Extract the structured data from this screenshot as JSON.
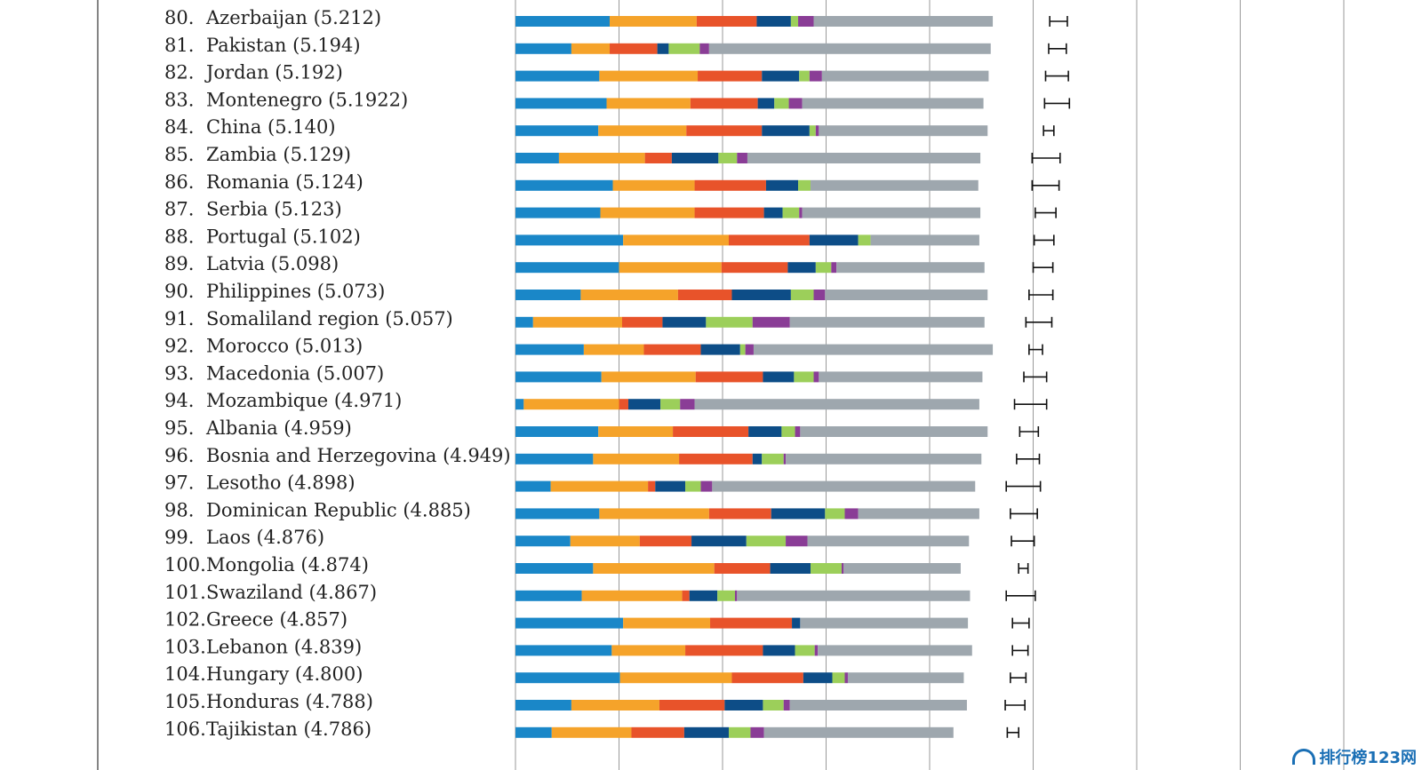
{
  "chart_data": {
    "type": "bar",
    "stacked": true,
    "title": "",
    "xlabel": "",
    "ylabel": "",
    "xlim": [
      0,
      9
    ],
    "grid": true,
    "legend": "none",
    "component_colors": [
      "#1a87c8",
      "#f5a32a",
      "#e8532a",
      "#0d4d87",
      "#9ccf5a",
      "#8a3d96",
      "#9ea7ae"
    ],
    "rows": [
      {
        "rank": "80.",
        "label": "Azerbaijan (5.212)",
        "segments": [
          0.91,
          0.84,
          0.58,
          0.33,
          0.07,
          0.15,
          1.73
        ],
        "score": 5.212,
        "ci": [
          5.16,
          5.33
        ]
      },
      {
        "rank": "81.",
        "label": "Pakistan (5.194)",
        "segments": [
          0.54,
          0.37,
          0.46,
          0.11,
          0.3,
          0.09,
          2.72
        ],
        "score": 5.194,
        "ci": [
          5.15,
          5.32
        ]
      },
      {
        "rank": "82.",
        "label": "Jordan (5.192)",
        "segments": [
          0.81,
          0.95,
          0.62,
          0.36,
          0.1,
          0.12,
          1.61
        ],
        "score": 5.192,
        "ci": [
          5.12,
          5.34
        ]
      },
      {
        "rank": "83.",
        "label": "Montenegro (5.1922)",
        "segments": [
          0.88,
          0.81,
          0.65,
          0.16,
          0.14,
          0.13,
          1.75
        ],
        "score": 5.1922,
        "ci": [
          5.11,
          5.35
        ]
      },
      {
        "rank": "84.",
        "label": "China (5.140)",
        "segments": [
          0.8,
          0.85,
          0.73,
          0.46,
          0.06,
          0.03,
          1.63
        ],
        "score": 5.14,
        "ci": [
          5.1,
          5.2
        ]
      },
      {
        "rank": "85.",
        "label": "Zambia (5.129)",
        "segments": [
          0.42,
          0.83,
          0.26,
          0.45,
          0.18,
          0.1,
          2.25
        ],
        "score": 5.129,
        "ci": [
          4.99,
          5.26
        ]
      },
      {
        "rank": "86.",
        "label": "Romania (5.124)",
        "segments": [
          0.94,
          0.79,
          0.69,
          0.31,
          0.12,
          0.0,
          1.62
        ],
        "score": 5.124,
        "ci": [
          4.99,
          5.25
        ]
      },
      {
        "rank": "87.",
        "label": "Serbia (5.123)",
        "segments": [
          0.82,
          0.91,
          0.67,
          0.18,
          0.16,
          0.03,
          1.72
        ],
        "score": 5.123,
        "ci": [
          5.02,
          5.22
        ]
      },
      {
        "rank": "88.",
        "label": "Portugal (5.102)",
        "segments": [
          1.04,
          1.02,
          0.78,
          0.47,
          0.12,
          0.0,
          1.05
        ],
        "score": 5.102,
        "ci": [
          5.01,
          5.2
        ]
      },
      {
        "rank": "89.",
        "label": "Latvia (5.098)",
        "segments": [
          1.0,
          0.99,
          0.64,
          0.27,
          0.15,
          0.05,
          1.43
        ],
        "score": 5.098,
        "ci": [
          5.0,
          5.19
        ]
      },
      {
        "rank": "90.",
        "label": "Philippines (5.073)",
        "segments": [
          0.63,
          0.94,
          0.52,
          0.57,
          0.22,
          0.11,
          1.57
        ],
        "score": 5.073,
        "ci": [
          4.96,
          5.19
        ]
      },
      {
        "rank": "91.",
        "label": "Somaliland region (5.057)",
        "segments": [
          0.17,
          0.86,
          0.39,
          0.42,
          0.45,
          0.36,
          1.88
        ],
        "score": 5.057,
        "ci": [
          4.93,
          5.18
        ]
      },
      {
        "rank": "92.",
        "label": "Morocco (5.013)",
        "segments": [
          0.66,
          0.58,
          0.55,
          0.38,
          0.05,
          0.08,
          2.31
        ],
        "score": 5.013,
        "ci": [
          4.96,
          5.09
        ]
      },
      {
        "rank": "93.",
        "label": "Macedonia (5.007)",
        "segments": [
          0.83,
          0.91,
          0.65,
          0.3,
          0.19,
          0.05,
          1.58
        ],
        "score": 5.007,
        "ci": [
          4.91,
          5.13
        ]
      },
      {
        "rank": "94.",
        "label": "Mozambique (4.971)",
        "segments": [
          0.08,
          0.92,
          0.09,
          0.31,
          0.19,
          0.14,
          2.75
        ],
        "score": 4.971,
        "ci": [
          4.82,
          5.13
        ]
      },
      {
        "rank": "95.",
        "label": "Albania (4.959)",
        "segments": [
          0.8,
          0.72,
          0.73,
          0.32,
          0.13,
          0.05,
          1.81
        ],
        "score": 4.959,
        "ci": [
          4.87,
          5.05
        ]
      },
      {
        "rank": "96.",
        "label": "Bosnia and Herzegovina (4.949)",
        "segments": [
          0.75,
          0.83,
          0.71,
          0.09,
          0.21,
          0.02,
          1.89
        ],
        "score": 4.949,
        "ci": [
          4.84,
          5.06
        ]
      },
      {
        "rank": "97.",
        "label": "Lesotho (4.898)",
        "segments": [
          0.34,
          0.94,
          0.07,
          0.29,
          0.15,
          0.11,
          2.54
        ],
        "score": 4.898,
        "ci": [
          4.74,
          5.07
        ]
      },
      {
        "rank": "98.",
        "label": "Dominican Republic (4.885)",
        "segments": [
          0.81,
          1.06,
          0.6,
          0.52,
          0.19,
          0.13,
          1.17
        ],
        "score": 4.885,
        "ci": [
          4.78,
          5.04
        ]
      },
      {
        "rank": "99.",
        "label": "Laos (4.876)",
        "segments": [
          0.53,
          0.67,
          0.5,
          0.53,
          0.38,
          0.21,
          1.56
        ],
        "score": 4.876,
        "ci": [
          4.79,
          5.01
        ]
      },
      {
        "rank": "100.",
        "label": "Mongolia (4.874)",
        "segments": [
          0.75,
          1.17,
          0.54,
          0.39,
          0.3,
          0.02,
          1.13
        ],
        "score": 4.874,
        "ci": [
          4.86,
          4.95
        ]
      },
      {
        "rank": "101.",
        "label": "Swaziland (4.867)",
        "segments": [
          0.64,
          0.97,
          0.07,
          0.27,
          0.17,
          0.02,
          2.25
        ],
        "score": 4.867,
        "ci": [
          4.74,
          5.02
        ]
      },
      {
        "rank": "102.",
        "label": "Greece (4.857)",
        "segments": [
          1.04,
          0.84,
          0.79,
          0.08,
          0.0,
          0.0,
          1.62
        ],
        "score": 4.857,
        "ci": [
          4.8,
          4.96
        ]
      },
      {
        "rank": "103.",
        "label": "Lebanon (4.839)",
        "segments": [
          0.93,
          0.71,
          0.75,
          0.31,
          0.19,
          0.03,
          1.49
        ],
        "score": 4.839,
        "ci": [
          4.8,
          4.95
        ]
      },
      {
        "rank": "104.",
        "label": "Hungary (4.800)",
        "segments": [
          1.01,
          1.08,
          0.69,
          0.28,
          0.12,
          0.03,
          1.12
        ],
        "score": 4.8,
        "ci": [
          4.78,
          4.93
        ]
      },
      {
        "rank": "105.",
        "label": "Honduras (4.788)",
        "segments": [
          0.54,
          0.85,
          0.63,
          0.37,
          0.2,
          0.06,
          1.71
        ],
        "score": 4.788,
        "ci": [
          4.73,
          4.92
        ]
      },
      {
        "rank": "106.",
        "label": "Tajikistan (4.786)",
        "segments": [
          0.35,
          0.77,
          0.51,
          0.43,
          0.21,
          0.13,
          1.83
        ],
        "score": 4.786,
        "ci": [
          4.75,
          4.86
        ]
      }
    ]
  },
  "watermark": {
    "text": "排行榜123网"
  }
}
